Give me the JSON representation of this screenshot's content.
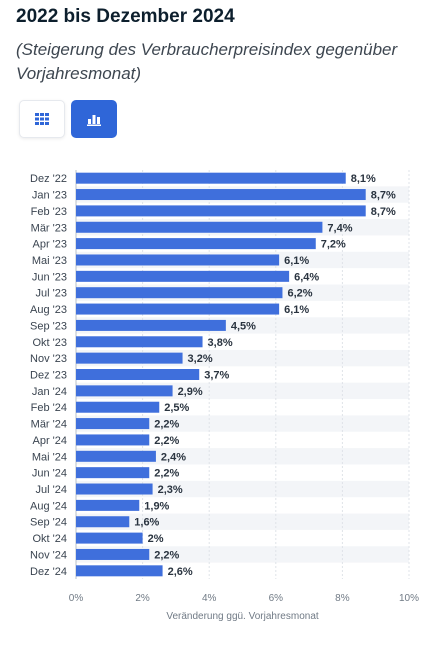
{
  "header": {
    "title": "2022 bis Dezember 2024",
    "subtitle": "(Steigerung des Verbraucherpreisindex gegenüber Vorjahresmonat)"
  },
  "view_toggle": {
    "table_icon": "grid-icon",
    "chart_icon": "bar-chart-icon",
    "active": "chart"
  },
  "colors": {
    "bar": "#3f6fdc",
    "active_button": "#2f66d8",
    "stripe": "#f3f5f8",
    "grid": "#dfe3e8"
  },
  "chart_data": {
    "type": "bar",
    "orientation": "horizontal",
    "categories": [
      "Dez '22",
      "Jan '23",
      "Feb '23",
      "Mär '23",
      "Apr '23",
      "Mai '23",
      "Jun '23",
      "Jul '23",
      "Aug '23",
      "Sep '23",
      "Okt '23",
      "Nov '23",
      "Dez '23",
      "Jan '24",
      "Feb '24",
      "Mär '24",
      "Apr '24",
      "Mai '24",
      "Jun '24",
      "Jul '24",
      "Aug '24",
      "Sep '24",
      "Okt '24",
      "Nov '24",
      "Dez '24"
    ],
    "values": [
      8.1,
      8.7,
      8.7,
      7.4,
      7.2,
      6.1,
      6.4,
      6.2,
      6.1,
      4.5,
      3.8,
      3.2,
      3.7,
      2.9,
      2.5,
      2.2,
      2.2,
      2.4,
      2.2,
      2.3,
      1.9,
      1.6,
      2.0,
      2.2,
      2.6
    ],
    "value_labels": [
      "8,1%",
      "8,7%",
      "8,7%",
      "7,4%",
      "7,2%",
      "6,1%",
      "6,4%",
      "6,2%",
      "6,1%",
      "4,5%",
      "3,8%",
      "3,2%",
      "3,7%",
      "2,9%",
      "2,5%",
      "2,2%",
      "2,2%",
      "2,4%",
      "2,2%",
      "2,3%",
      "1,9%",
      "1,6%",
      "2%",
      "2,2%",
      "2,6%"
    ],
    "xlabel": "Veränderung ggü. Vorjahresmonat",
    "xlim": [
      0,
      10
    ],
    "xticks": [
      0,
      2,
      4,
      6,
      8,
      10
    ],
    "xtick_labels": [
      "0%",
      "2%",
      "4%",
      "6%",
      "8%",
      "10%"
    ],
    "grid": true,
    "legend": "none"
  }
}
